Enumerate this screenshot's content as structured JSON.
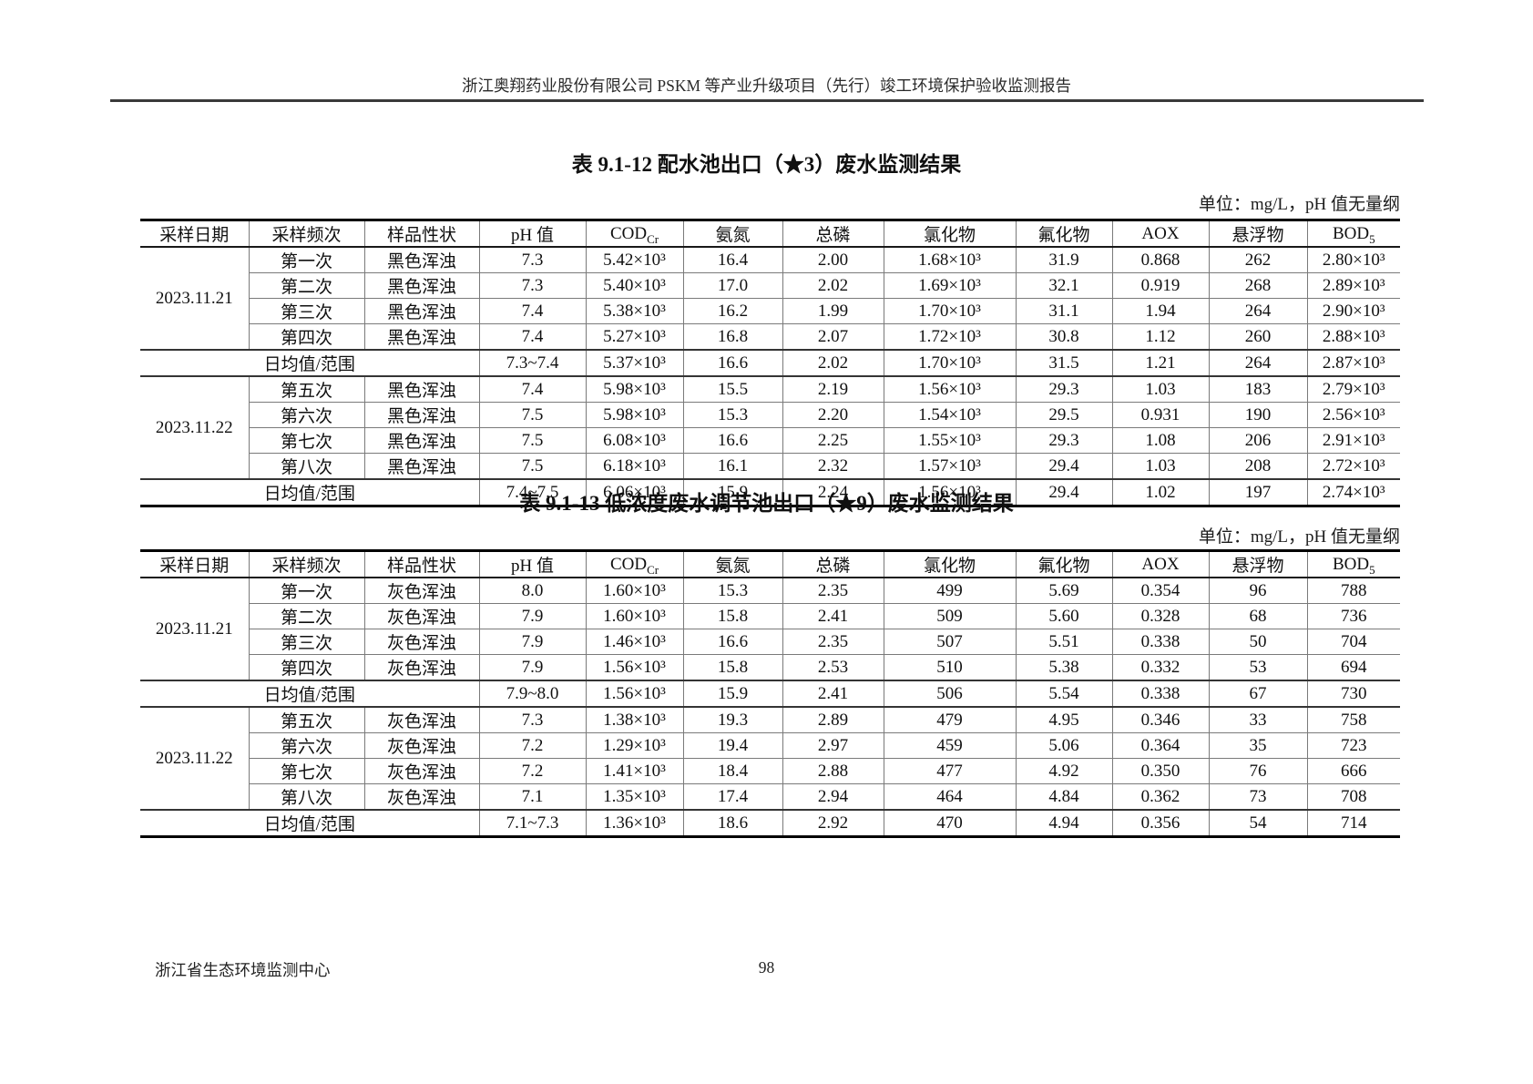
{
  "page": {
    "header_title": "浙江奥翔药业股份有限公司 PSKM 等产业升级项目（先行）竣工环境保护验收监测报告",
    "footer_left": "浙江省生态环境监测中心",
    "footer_page": "98"
  },
  "tables": [
    {
      "title": "表 9.1-12 配水池出口（★3）废水监测结果",
      "unit_note": "单位：mg/L，pH 值无量纲",
      "columns": [
        {
          "label": "采样日期"
        },
        {
          "label": "采样频次"
        },
        {
          "label": "样品性状"
        },
        {
          "label": "pH 值"
        },
        {
          "label": "COD",
          "sub": "Cr"
        },
        {
          "label": "氨氮"
        },
        {
          "label": "总磷"
        },
        {
          "label": "氯化物"
        },
        {
          "label": "氟化物"
        },
        {
          "label": "AOX"
        },
        {
          "label": "悬浮物"
        },
        {
          "label": "BOD",
          "sub": "5"
        }
      ],
      "groups": [
        {
          "date": "2023.11.21",
          "rows": [
            {
              "freq": "第一次",
              "appearance": "黑色浑浊",
              "values": [
                "7.3",
                "5.42×10³",
                "16.4",
                "2.00",
                "1.68×10³",
                "31.9",
                "0.868",
                "262",
                "2.80×10³"
              ]
            },
            {
              "freq": "第二次",
              "appearance": "黑色浑浊",
              "values": [
                "7.3",
                "5.40×10³",
                "17.0",
                "2.02",
                "1.69×10³",
                "32.1",
                "0.919",
                "268",
                "2.89×10³"
              ]
            },
            {
              "freq": "第三次",
              "appearance": "黑色浑浊",
              "values": [
                "7.4",
                "5.38×10³",
                "16.2",
                "1.99",
                "1.70×10³",
                "31.1",
                "1.94",
                "264",
                "2.90×10³"
              ]
            },
            {
              "freq": "第四次",
              "appearance": "黑色浑浊",
              "values": [
                "7.4",
                "5.27×10³",
                "16.8",
                "2.07",
                "1.72×10³",
                "30.8",
                "1.12",
                "260",
                "2.88×10³"
              ]
            }
          ],
          "daily": {
            "label": "日均值/范围",
            "values": [
              "7.3~7.4",
              "5.37×10³",
              "16.6",
              "2.02",
              "1.70×10³",
              "31.5",
              "1.21",
              "264",
              "2.87×10³"
            ]
          }
        },
        {
          "date": "2023.11.22",
          "rows": [
            {
              "freq": "第五次",
              "appearance": "黑色浑浊",
              "values": [
                "7.4",
                "5.98×10³",
                "15.5",
                "2.19",
                "1.56×10³",
                "29.3",
                "1.03",
                "183",
                "2.79×10³"
              ]
            },
            {
              "freq": "第六次",
              "appearance": "黑色浑浊",
              "values": [
                "7.5",
                "5.98×10³",
                "15.3",
                "2.20",
                "1.54×10³",
                "29.5",
                "0.931",
                "190",
                "2.56×10³"
              ]
            },
            {
              "freq": "第七次",
              "appearance": "黑色浑浊",
              "values": [
                "7.5",
                "6.08×10³",
                "16.6",
                "2.25",
                "1.55×10³",
                "29.3",
                "1.08",
                "206",
                "2.91×10³"
              ]
            },
            {
              "freq": "第八次",
              "appearance": "黑色浑浊",
              "values": [
                "7.5",
                "6.18×10³",
                "16.1",
                "2.32",
                "1.57×10³",
                "29.4",
                "1.03",
                "208",
                "2.72×10³"
              ]
            }
          ],
          "daily": {
            "label": "日均值/范围",
            "values": [
              "7.4~7.5",
              "6.06×10³",
              "15.9",
              "2.24",
              "1.56×10³",
              "29.4",
              "1.02",
              "197",
              "2.74×10³"
            ]
          }
        }
      ]
    },
    {
      "title": "表 9.1-13 低浓度废水调节池出口（★9）废水监测结果",
      "unit_note": "单位：mg/L，pH 值无量纲",
      "columns": [
        {
          "label": "采样日期"
        },
        {
          "label": "采样频次"
        },
        {
          "label": "样品性状"
        },
        {
          "label": "pH 值"
        },
        {
          "label": "COD",
          "sub": "Cr"
        },
        {
          "label": "氨氮"
        },
        {
          "label": "总磷"
        },
        {
          "label": "氯化物"
        },
        {
          "label": "氟化物"
        },
        {
          "label": "AOX"
        },
        {
          "label": "悬浮物"
        },
        {
          "label": "BOD",
          "sub": "5"
        }
      ],
      "groups": [
        {
          "date": "2023.11.21",
          "rows": [
            {
              "freq": "第一次",
              "appearance": "灰色浑浊",
              "values": [
                "8.0",
                "1.60×10³",
                "15.3",
                "2.35",
                "499",
                "5.69",
                "0.354",
                "96",
                "788"
              ]
            },
            {
              "freq": "第二次",
              "appearance": "灰色浑浊",
              "values": [
                "7.9",
                "1.60×10³",
                "15.8",
                "2.41",
                "509",
                "5.60",
                "0.328",
                "68",
                "736"
              ]
            },
            {
              "freq": "第三次",
              "appearance": "灰色浑浊",
              "values": [
                "7.9",
                "1.46×10³",
                "16.6",
                "2.35",
                "507",
                "5.51",
                "0.338",
                "50",
                "704"
              ]
            },
            {
              "freq": "第四次",
              "appearance": "灰色浑浊",
              "values": [
                "7.9",
                "1.56×10³",
                "15.8",
                "2.53",
                "510",
                "5.38",
                "0.332",
                "53",
                "694"
              ]
            }
          ],
          "daily": {
            "label": "日均值/范围",
            "values": [
              "7.9~8.0",
              "1.56×10³",
              "15.9",
              "2.41",
              "506",
              "5.54",
              "0.338",
              "67",
              "730"
            ]
          }
        },
        {
          "date": "2023.11.22",
          "rows": [
            {
              "freq": "第五次",
              "appearance": "灰色浑浊",
              "values": [
                "7.3",
                "1.38×10³",
                "19.3",
                "2.89",
                "479",
                "4.95",
                "0.346",
                "33",
                "758"
              ]
            },
            {
              "freq": "第六次",
              "appearance": "灰色浑浊",
              "values": [
                "7.2",
                "1.29×10³",
                "19.4",
                "2.97",
                "459",
                "5.06",
                "0.364",
                "35",
                "723"
              ]
            },
            {
              "freq": "第七次",
              "appearance": "灰色浑浊",
              "values": [
                "7.2",
                "1.41×10³",
                "18.4",
                "2.88",
                "477",
                "4.92",
                "0.350",
                "76",
                "666"
              ]
            },
            {
              "freq": "第八次",
              "appearance": "灰色浑浊",
              "values": [
                "7.1",
                "1.35×10³",
                "17.4",
                "2.94",
                "464",
                "4.84",
                "0.362",
                "73",
                "708"
              ]
            }
          ],
          "daily": {
            "label": "日均值/范围",
            "values": [
              "7.1~7.3",
              "1.36×10³",
              "18.6",
              "2.92",
              "470",
              "4.94",
              "0.356",
              "54",
              "714"
            ]
          }
        }
      ]
    }
  ]
}
